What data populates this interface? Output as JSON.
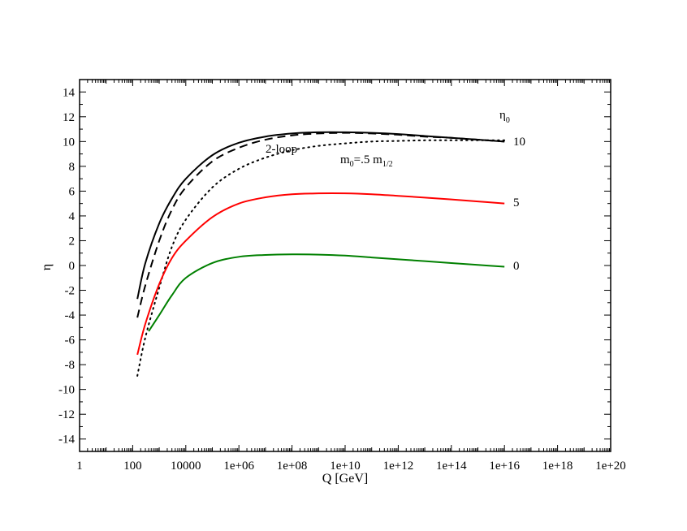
{
  "chart_data": {
    "type": "line",
    "title": "",
    "xlabel": "Q [GeV]",
    "ylabel": "η",
    "xscale": "log10",
    "xlim": [
      1,
      1e+20
    ],
    "ylim": [
      -15,
      15
    ],
    "grid": false,
    "x_tick_labels": [
      "1",
      "100",
      "10000",
      "1e+06",
      "1e+08",
      "1e+10",
      "1e+12",
      "1e+14",
      "1e+16",
      "1e+18",
      "1e+20"
    ],
    "y_tick_labels": [
      "-14",
      "-12",
      "-10",
      "-8",
      "-6",
      "-4",
      "-2",
      "0",
      "2",
      "4",
      "6",
      "8",
      "10",
      "12",
      "14"
    ],
    "legend_title": "η",
    "legend_title_sub": "0",
    "series": [
      {
        "label": "10",
        "color": "#000000",
        "style": "solid",
        "x": [
          150,
          300,
          1000,
          3000,
          10000,
          100000,
          1000000.0,
          10000000.0,
          100000000.0,
          1000000000.0,
          10000000000.0,
          100000000000.0,
          1000000000000.0,
          10000000000000.0,
          100000000000000.0,
          1000000000000000.0,
          1e+16
        ],
        "y": [
          -2.7,
          0.2,
          3.4,
          5.4,
          7.0,
          8.9,
          9.9,
          10.4,
          10.65,
          10.75,
          10.75,
          10.7,
          10.6,
          10.45,
          10.3,
          10.15,
          10.0
        ]
      },
      {
        "label": "2-loop",
        "color": "#000000",
        "style": "dashed",
        "x": [
          150,
          300,
          1000,
          3000,
          10000,
          100000,
          1000000.0,
          10000000.0,
          100000000.0,
          1000000000.0,
          10000000000.0,
          100000000000.0,
          1000000000000.0,
          10000000000000.0,
          100000000000000.0,
          1000000000000000.0,
          1e+16
        ],
        "y": [
          -4.2,
          -1.6,
          2.0,
          4.5,
          6.3,
          8.4,
          9.5,
          10.15,
          10.5,
          10.65,
          10.7,
          10.65,
          10.55,
          10.4,
          10.3,
          10.15,
          10.0
        ]
      },
      {
        "label": "m0=.5 m1/2",
        "color": "#000000",
        "style": "dotted",
        "x": [
          150,
          300,
          1000,
          3000,
          10000,
          100000,
          1000000.0,
          10000000.0,
          100000000.0,
          1000000000.0,
          10000000000.0,
          100000000000.0,
          1000000000000.0,
          10000000000000.0,
          100000000000000.0,
          1000000000000000.0,
          1e+16
        ],
        "y": [
          -8.9,
          -5.8,
          -1.8,
          1.5,
          3.7,
          6.3,
          7.8,
          8.7,
          9.3,
          9.65,
          9.85,
          10.0,
          10.05,
          10.1,
          10.1,
          10.1,
          10.1
        ]
      },
      {
        "label": "5",
        "color": "#ff0000",
        "style": "solid",
        "x": [
          150,
          300,
          1000,
          3000,
          10000,
          100000,
          1000000.0,
          10000000.0,
          100000000.0,
          1000000000.0,
          10000000000.0,
          100000000000.0,
          1000000000000.0,
          10000000000000.0,
          100000000000000.0,
          1000000000000000.0,
          1e+16
        ],
        "y": [
          -7.2,
          -4.7,
          -1.5,
          0.6,
          2.0,
          3.9,
          5.0,
          5.5,
          5.75,
          5.82,
          5.82,
          5.75,
          5.62,
          5.48,
          5.33,
          5.17,
          5.0
        ]
      },
      {
        "label": "0",
        "color": "#008000",
        "style": "solid",
        "x": [
          400,
          1000,
          3000,
          10000,
          100000,
          1000000.0,
          10000000.0,
          100000000.0,
          1000000000.0,
          10000000000.0,
          100000000000.0,
          1000000000000.0,
          10000000000000.0,
          100000000000000.0,
          1000000000000000.0,
          1e+16
        ],
        "y": [
          -5.3,
          -4.0,
          -2.4,
          -1.0,
          0.2,
          0.7,
          0.85,
          0.9,
          0.88,
          0.8,
          0.65,
          0.5,
          0.35,
          0.2,
          0.05,
          -0.1
        ]
      }
    ],
    "annotations": [
      {
        "text": "2-loop"
      },
      {
        "text": "m",
        "sub1": "0",
        "mid": "=.5 m",
        "sub2": "1/2"
      }
    ]
  }
}
